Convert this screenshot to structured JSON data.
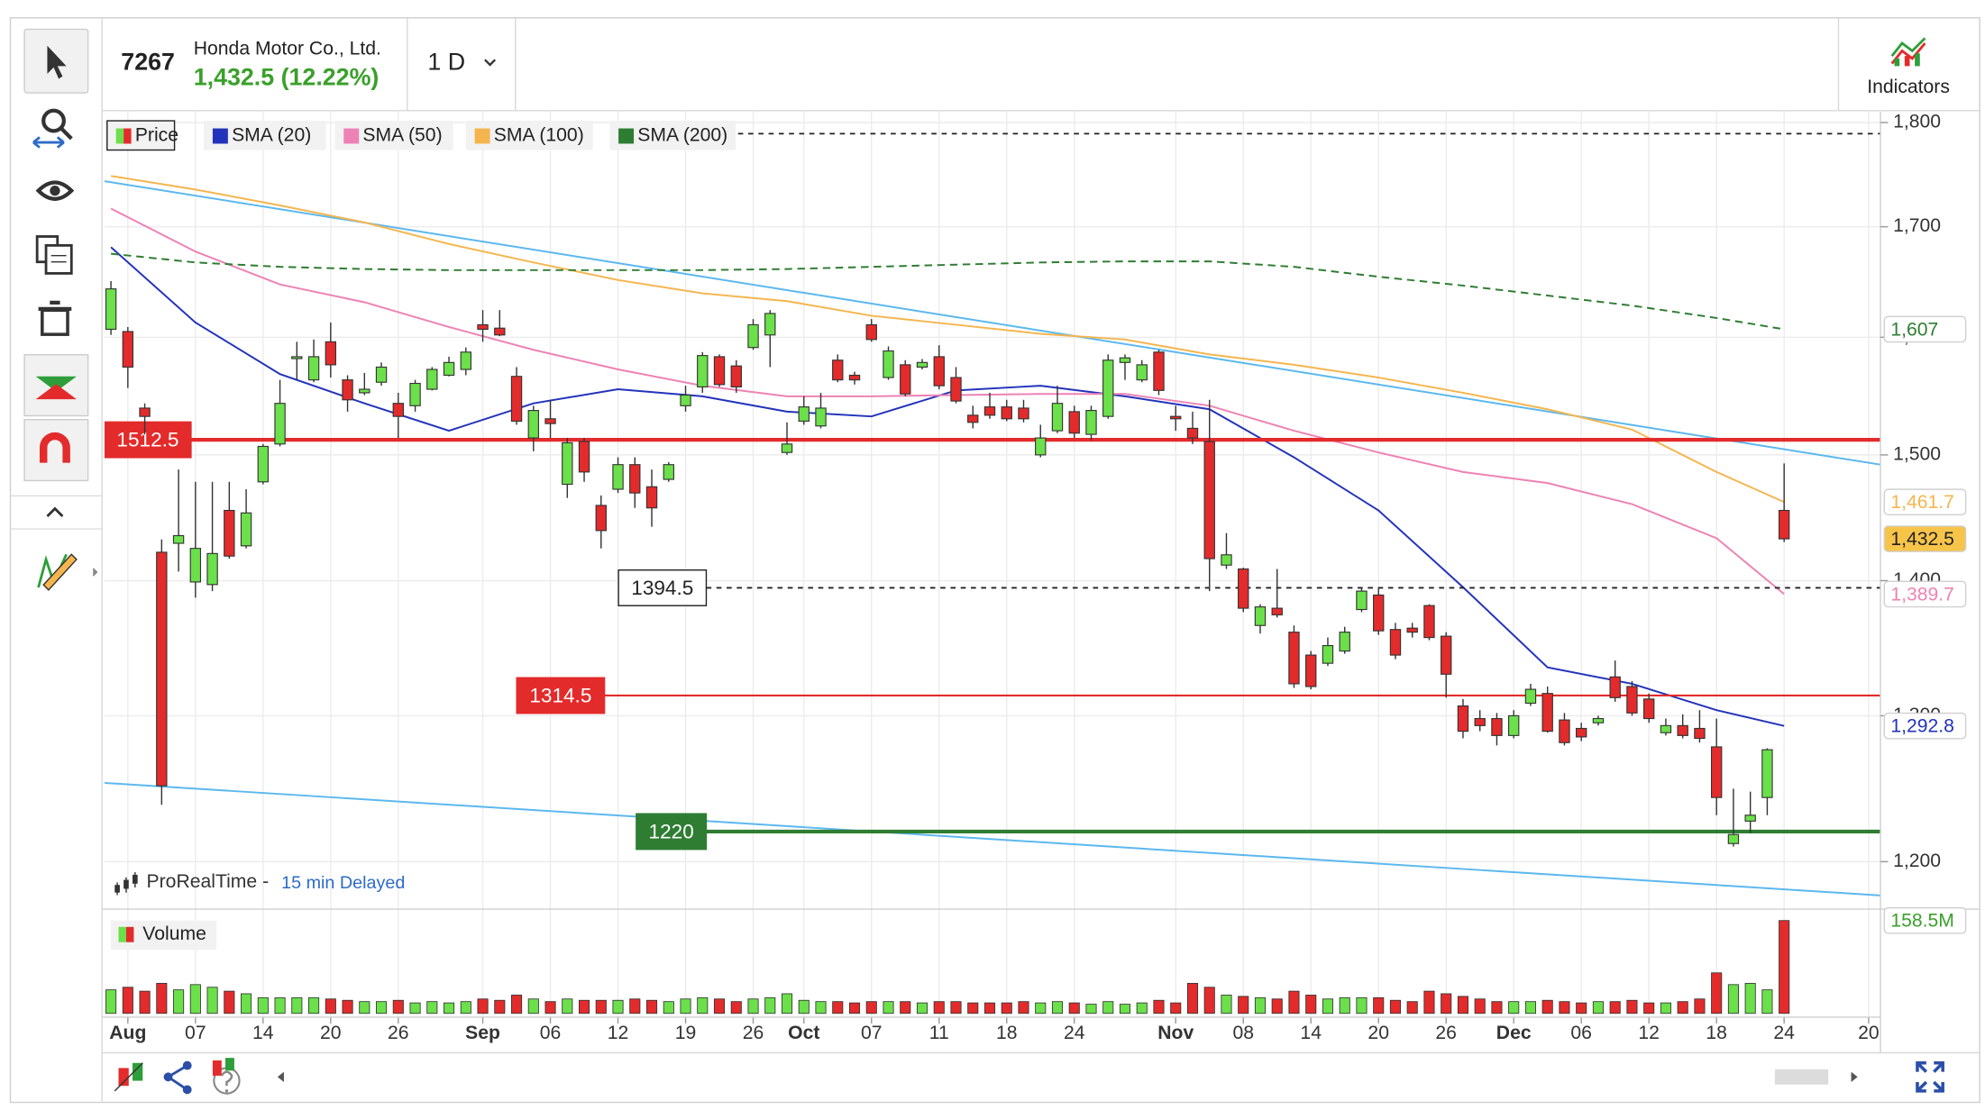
{
  "header": {
    "symbol": "7267",
    "name": "Honda Motor Co., Ltd.",
    "quote": "1,432.5 (12.22%)",
    "interval": "1 D",
    "indicators": "Indicators"
  },
  "source": {
    "name": "ProRealTime -",
    "delay": "15 min Delayed"
  },
  "chart_data": {
    "type": "candlestick",
    "log_scale": true,
    "grid": true,
    "xlim": [
      -0.38,
      104.7
    ],
    "ylim": [
      1170,
      1808
    ],
    "yticks": [
      {
        "value": 1200,
        "label": "1,200"
      },
      {
        "value": 1300,
        "label": "1,300"
      },
      {
        "value": 1400,
        "label": "1,400"
      },
      {
        "value": 1500,
        "label": "1,500"
      },
      {
        "value": 1600,
        "label": "1,600"
      },
      {
        "value": 1700,
        "label": "1,700"
      },
      {
        "value": 1800,
        "label": "1,800"
      }
    ],
    "xticks": [
      {
        "value": 1,
        "label": "Aug"
      },
      {
        "value": 5,
        "label": "07"
      },
      {
        "value": 9,
        "label": "14"
      },
      {
        "value": 13,
        "label": "20"
      },
      {
        "value": 17,
        "label": "26"
      },
      {
        "value": 22,
        "label": "Sep"
      },
      {
        "value": 26,
        "label": "06"
      },
      {
        "value": 30,
        "label": "12"
      },
      {
        "value": 34,
        "label": "19"
      },
      {
        "value": 38,
        "label": "26"
      },
      {
        "value": 41,
        "label": "Oct"
      },
      {
        "value": 45,
        "label": "07"
      },
      {
        "value": 49,
        "label": "11"
      },
      {
        "value": 53,
        "label": "18"
      },
      {
        "value": 57,
        "label": "24"
      },
      {
        "value": 63,
        "label": "Nov"
      },
      {
        "value": 67,
        "label": "08"
      },
      {
        "value": 71,
        "label": "14"
      },
      {
        "value": 75,
        "label": "20"
      },
      {
        "value": 79,
        "label": "26"
      },
      {
        "value": 83,
        "label": "Dec"
      },
      {
        "value": 87,
        "label": "06"
      },
      {
        "value": 91,
        "label": "12"
      },
      {
        "value": 95,
        "label": "18"
      },
      {
        "value": 99,
        "label": "24"
      },
      {
        "value": 104,
        "label": "20"
      }
    ],
    "price": {
      "name": "Price",
      "up_color": "#6be04a",
      "down_color": "#e32b2b",
      "last_label": "1,432.5",
      "open": [
        1607,
        1605,
        1539,
        1422,
        1429,
        1399,
        1397,
        1455,
        1427,
        1478,
        1509,
        1582,
        1563,
        1596,
        1563,
        1552,
        1561,
        1543,
        1541,
        1555,
        1567,
        1572,
        1611,
        1608,
        1566,
        1514,
        1530,
        1476,
        1511,
        1459,
        1472,
        1492,
        1474,
        1480,
        1541,
        1557,
        1583,
        1575,
        1591,
        1602,
        1502,
        1528,
        1524,
        1580,
        1567,
        1611,
        1565,
        1576,
        1574,
        1583,
        1565,
        1533,
        1540,
        1540,
        1539,
        1500,
        1520,
        1536,
        1517,
        1532,
        1578,
        1563,
        1587,
        1532,
        1522,
        1511,
        1412,
        1409,
        1366,
        1379,
        1361,
        1344,
        1338,
        1347,
        1378,
        1389,
        1363,
        1364,
        1381,
        1358,
        1307,
        1298,
        1298,
        1286,
        1309,
        1316,
        1297,
        1291,
        1295,
        1328,
        1321,
        1312,
        1288,
        1293,
        1291,
        1278,
        1212,
        1227,
        1243,
        1455
      ],
      "high": [
        1650,
        1609,
        1543,
        1432,
        1488,
        1478,
        1478,
        1478,
        1472,
        1509,
        1563,
        1596,
        1598,
        1613,
        1567,
        1569,
        1578,
        1552,
        1563,
        1574,
        1583,
        1591,
        1624,
        1624,
        1574,
        1541,
        1546,
        1514,
        1514,
        1467,
        1498,
        1498,
        1488,
        1494,
        1558,
        1587,
        1585,
        1580,
        1616,
        1624,
        1527,
        1549,
        1552,
        1585,
        1570,
        1616,
        1592,
        1580,
        1581,
        1593,
        1574,
        1541,
        1552,
        1546,
        1546,
        1525,
        1558,
        1541,
        1541,
        1585,
        1585,
        1580,
        1589,
        1541,
        1536,
        1546,
        1437,
        1410,
        1382,
        1409,
        1366,
        1347,
        1357,
        1365,
        1395,
        1395,
        1368,
        1368,
        1382,
        1361,
        1312,
        1304,
        1302,
        1304,
        1323,
        1321,
        1302,
        1295,
        1300,
        1340,
        1325,
        1316,
        1298,
        1301,
        1304,
        1298,
        1249,
        1247,
        1277,
        1493
      ],
      "low": [
        1602,
        1556,
        1517,
        1238,
        1407,
        1387,
        1392,
        1417,
        1425,
        1476,
        1507,
        1563,
        1561,
        1565,
        1536,
        1550,
        1558,
        1514,
        1536,
        1554,
        1566,
        1567,
        1596,
        1601,
        1525,
        1503,
        1514,
        1465,
        1478,
        1425,
        1469,
        1457,
        1442,
        1478,
        1536,
        1552,
        1557,
        1552,
        1589,
        1574,
        1500,
        1525,
        1522,
        1561,
        1559,
        1596,
        1563,
        1549,
        1572,
        1555,
        1543,
        1522,
        1530,
        1528,
        1527,
        1498,
        1518,
        1514,
        1512,
        1530,
        1563,
        1561,
        1550,
        1520,
        1509,
        1392,
        1409,
        1376,
        1360,
        1372,
        1320,
        1319,
        1336,
        1345,
        1376,
        1359,
        1341,
        1357,
        1355,
        1313,
        1284,
        1289,
        1279,
        1284,
        1307,
        1288,
        1279,
        1282,
        1293,
        1310,
        1300,
        1295,
        1286,
        1284,
        1281,
        1231,
        1210,
        1219,
        1231,
        1430
      ],
      "close": [
        1643,
        1574,
        1532,
        1251,
        1435,
        1425,
        1421,
        1419,
        1453,
        1507,
        1543,
        1583,
        1583,
        1576,
        1546,
        1555,
        1574,
        1532,
        1560,
        1572,
        1578,
        1587,
        1607,
        1602,
        1528,
        1537,
        1526,
        1510,
        1486,
        1439,
        1492,
        1469,
        1457,
        1492,
        1550,
        1584,
        1559,
        1557,
        1611,
        1621,
        1509,
        1540,
        1539,
        1563,
        1563,
        1598,
        1588,
        1551,
        1578,
        1558,
        1545,
        1527,
        1533,
        1530,
        1530,
        1514,
        1543,
        1518,
        1537,
        1580,
        1582,
        1576,
        1554,
        1530,
        1514,
        1417,
        1420,
        1379,
        1380,
        1374,
        1323,
        1321,
        1351,
        1361,
        1392,
        1362,
        1344,
        1361,
        1357,
        1330,
        1289,
        1293,
        1286,
        1300,
        1319,
        1289,
        1281,
        1285,
        1298,
        1313,
        1302,
        1298,
        1293,
        1286,
        1284,
        1243,
        1218,
        1231,
        1276,
        1432.5
      ]
    },
    "sma": [
      {
        "name": "SMA (20)",
        "color": "#2233bb",
        "dashed": false,
        "last_label": "1,292.8",
        "x": [
          0,
          5,
          10,
          15,
          20,
          25,
          30,
          35,
          40,
          45,
          50,
          55,
          60,
          65,
          70,
          75,
          80,
          85,
          90,
          95,
          99
        ],
        "values": [
          1681,
          1613,
          1568,
          1543,
          1520,
          1543,
          1555,
          1549,
          1536,
          1532,
          1554,
          1558,
          1549,
          1538,
          1498,
          1455,
          1395,
          1335,
          1323,
          1304,
          1292.8
        ]
      },
      {
        "name": "SMA (50)",
        "color": "#ee82b4",
        "dashed": false,
        "last_label": "1,389.7",
        "x": [
          0,
          5,
          10,
          15,
          20,
          25,
          30,
          35,
          40,
          45,
          50,
          55,
          60,
          65,
          70,
          75,
          80,
          85,
          90,
          95,
          99
        ],
        "values": [
          1717,
          1677,
          1647,
          1631,
          1609,
          1589,
          1572,
          1558,
          1549,
          1549,
          1550,
          1551,
          1551,
          1541,
          1520,
          1502,
          1486,
          1477,
          1460,
          1433,
          1389.7
        ]
      },
      {
        "name": "SMA (100)",
        "color": "#f5b54e",
        "dashed": false,
        "last_label": "1,461.7",
        "x": [
          0,
          5,
          10,
          15,
          20,
          25,
          30,
          35,
          40,
          45,
          50,
          55,
          60,
          65,
          70,
          75,
          80,
          85,
          90,
          95,
          99
        ],
        "values": [
          1748,
          1735,
          1720,
          1704,
          1684,
          1667,
          1651,
          1639,
          1632,
          1619,
          1611,
          1603,
          1598,
          1585,
          1576,
          1565,
          1552,
          1538,
          1521,
          1486,
          1461.7
        ]
      },
      {
        "name": "SMA (200)",
        "color": "#2e7d32",
        "dashed": true,
        "last_label": "1,607",
        "x": [
          0,
          5,
          10,
          15,
          20,
          25,
          30,
          35,
          40,
          45,
          50,
          55,
          60,
          65,
          70,
          75,
          80,
          85,
          90,
          95,
          99
        ],
        "values": [
          1675,
          1667,
          1663,
          1661,
          1660,
          1660,
          1660,
          1660,
          1661,
          1663,
          1665,
          1667,
          1668,
          1668,
          1663,
          1654,
          1646,
          1637,
          1628,
          1617,
          1607
        ]
      }
    ],
    "levels": [
      {
        "value": 1789,
        "color": "#222222",
        "dashed": true
      },
      {
        "value": 1512.5,
        "color": "#e32b2b",
        "dashed": false
      },
      {
        "value": 1394.5,
        "color": "#222222",
        "dashed": true
      },
      {
        "value": 1314.5,
        "color": "#e32b2b",
        "dashed": false
      },
      {
        "value": 1220,
        "color": "#2e7d32",
        "dashed": false
      }
    ],
    "trendlines": [
      {
        "color": "#5bb8ee",
        "x": [
          -0.38,
          104.7
        ],
        "values": [
          1743,
          1492
        ]
      },
      {
        "color": "#5bb8ee",
        "x": [
          -0.38,
          104.7
        ],
        "values": [
          1253,
          1178
        ]
      }
    ],
    "volume": {
      "name": "Volume",
      "ylim": [
        0,
        158.5
      ],
      "last_label": "158.5M",
      "values": [
        40.2,
        44.6,
        37.9,
        51.3,
        40.2,
        49.1,
        44.6,
        37.9,
        33.5,
        26.8,
        26.8,
        26.8,
        26.8,
        24.6,
        22.3,
        20.1,
        20.1,
        22.3,
        17.9,
        20.1,
        17.9,
        20.1,
        24.6,
        22.3,
        31.2,
        24.6,
        20.1,
        24.6,
        22.3,
        22.3,
        22.3,
        24.6,
        22.3,
        20.1,
        24.6,
        26.8,
        24.6,
        20.1,
        24.6,
        26.8,
        33.5,
        22.3,
        20.1,
        20.1,
        17.9,
        20.1,
        20.1,
        20.1,
        17.9,
        20.1,
        20.1,
        17.9,
        17.9,
        17.9,
        20.1,
        17.9,
        20.1,
        17.9,
        15.6,
        20.1,
        15.6,
        17.9,
        22.3,
        17.9,
        51.3,
        44.6,
        31.2,
        29.0,
        26.8,
        24.6,
        37.9,
        31.2,
        24.6,
        26.8,
        26.8,
        26.8,
        22.3,
        20.1,
        37.9,
        33.5,
        29.0,
        24.6,
        20.1,
        20.1,
        20.1,
        22.3,
        20.1,
        17.9,
        20.1,
        20.1,
        22.3,
        17.9,
        17.9,
        20.1,
        24.6,
        69.2,
        49.1,
        51.3,
        40.2,
        158.5
      ]
    }
  }
}
